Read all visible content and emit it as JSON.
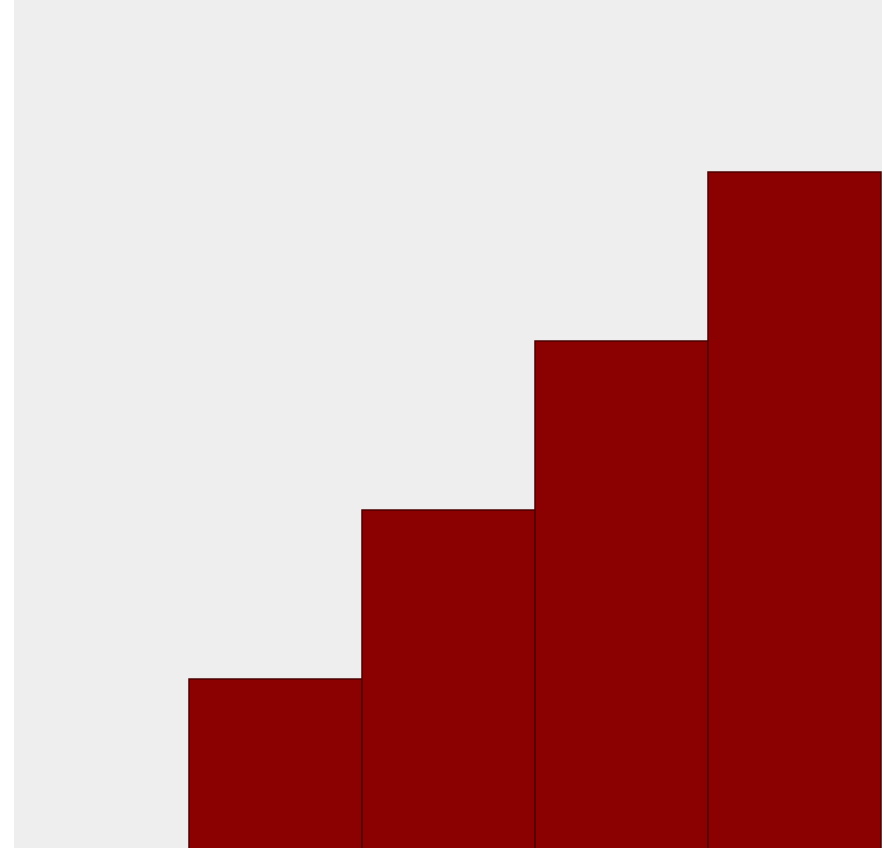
{
  "chart_data": {
    "type": "bar",
    "categories": [
      "",
      "",
      "",
      "",
      ""
    ],
    "values": [
      0,
      1,
      2,
      3,
      4
    ],
    "title": "",
    "xlabel": "",
    "ylabel": "",
    "ylim": [
      0,
      5
    ],
    "grid": false,
    "legend": "none",
    "bar_color": "#8b0000",
    "bar_edge_color": "#4a0000",
    "plot_background": "#eeeeee",
    "page_background": "#ffffff"
  }
}
